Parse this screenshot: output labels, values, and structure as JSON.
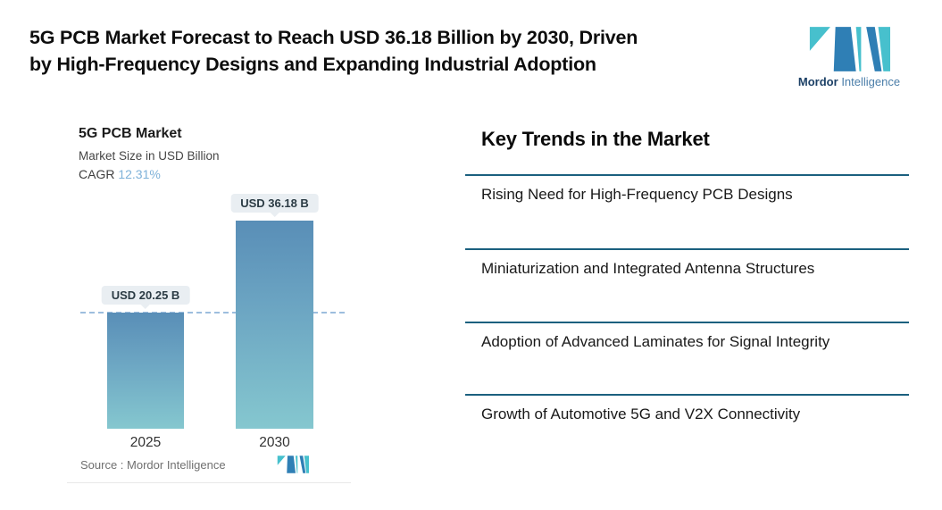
{
  "header": {
    "title_line1": "5G PCB Market Forecast to Reach USD 36.18 Billion by 2030, Driven",
    "title_line2": "by High-Frequency Designs and Expanding Industrial Adoption",
    "brand_name_bold": "Mordor",
    "brand_name_light": "Intelligence"
  },
  "chart": {
    "title": "5G PCB Market",
    "subtitle": "Market Size in USD Billion",
    "cagr_label": "CAGR",
    "cagr_value": "12.31%",
    "source_text": "Source :  Mordor Intelligence"
  },
  "chart_data": {
    "type": "bar",
    "title": "5G PCB Market",
    "subtitle": "Market Size in USD Billion",
    "cagr": "12.31%",
    "unit": "USD Billion",
    "categories": [
      "2025",
      "2030"
    ],
    "values": [
      20.25,
      36.18
    ],
    "value_labels": [
      "USD 20.25 B",
      "USD 36.18 B"
    ],
    "reference_line": {
      "style": "dashed",
      "at_value": 20.25
    },
    "source": "Mordor Intelligence",
    "bar_gradient": [
      "#598eb7",
      "#85c7cf"
    ]
  },
  "trends": {
    "heading": "Key Trends in the Market",
    "items": [
      "Rising Need for High-Frequency PCB Designs",
      "Miniaturization and Integrated Antenna Structures",
      "Adoption of Advanced Laminates for Signal Integrity",
      "Growth of Automotive 5G and V2X Connectivity"
    ]
  },
  "colors": {
    "rule": "#1b607f",
    "cagr_accent": "#7fb2d9",
    "dashed_line": "#9dbede",
    "logo_dark_blue": "#2f7fb5",
    "logo_teal": "#47c0cd",
    "pill_bg": "#e9eef2"
  }
}
